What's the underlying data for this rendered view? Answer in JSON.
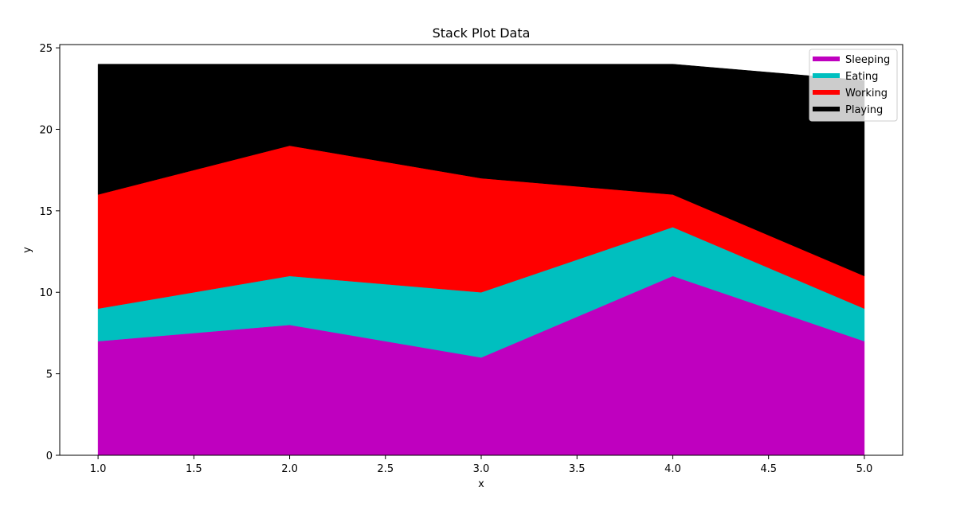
{
  "chart_data": {
    "type": "area",
    "stacked": true,
    "title": "Stack Plot Data",
    "xlabel": "x",
    "ylabel": "y",
    "x": [
      1,
      2,
      3,
      4,
      5
    ],
    "xlim": [
      0.8,
      5.2
    ],
    "ylim": [
      0,
      25.2
    ],
    "xticks": [
      1.0,
      1.5,
      2.0,
      2.5,
      3.0,
      3.5,
      4.0,
      4.5,
      5.0
    ],
    "xtick_labels": [
      "1.0",
      "1.5",
      "2.0",
      "2.5",
      "3.0",
      "3.5",
      "4.0",
      "4.5",
      "5.0"
    ],
    "yticks": [
      0,
      5,
      10,
      15,
      20,
      25
    ],
    "ytick_labels": [
      "0",
      "5",
      "10",
      "15",
      "20",
      "25"
    ],
    "grid": false,
    "legend_position": "top-right",
    "series": [
      {
        "name": "Sleeping",
        "color": "#bf00bf",
        "values": [
          7,
          8,
          6,
          11,
          7
        ]
      },
      {
        "name": "Eating",
        "color": "#00bfbf",
        "values": [
          2,
          3,
          4,
          3,
          2
        ]
      },
      {
        "name": "Working",
        "color": "#ff0000",
        "values": [
          7,
          8,
          7,
          2,
          2
        ]
      },
      {
        "name": "Playing",
        "color": "#000000",
        "values": [
          8,
          5,
          7,
          8,
          12
        ]
      }
    ]
  }
}
